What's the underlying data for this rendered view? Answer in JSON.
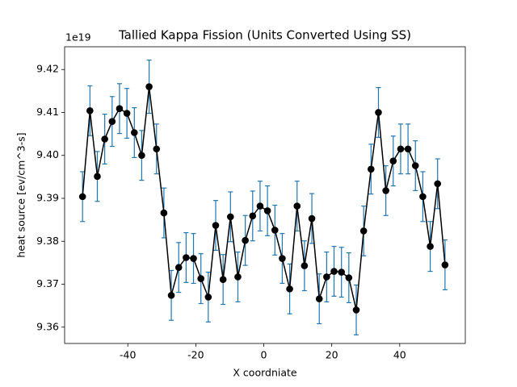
{
  "chart_data": {
    "type": "errorbar",
    "title": "Tallied Kappa Fission (Units Converted Using SS)",
    "xlabel": "X coordniate",
    "ylabel": "heat source [ev/cm^3-s]",
    "y_offset_label": "1e19",
    "x": [
      -53.33,
      -51.15,
      -48.98,
      -46.8,
      -44.62,
      -42.45,
      -40.27,
      -38.09,
      -35.92,
      -33.74,
      -31.56,
      -29.39,
      -27.21,
      -25.03,
      -22.86,
      -20.68,
      -18.5,
      -16.33,
      -14.15,
      -11.97,
      -9.8,
      -7.62,
      -5.44,
      -3.27,
      -1.09,
      1.09,
      3.27,
      5.44,
      7.62,
      9.8,
      11.97,
      14.15,
      16.33,
      18.5,
      20.68,
      22.86,
      25.03,
      27.21,
      29.39,
      31.56,
      33.74,
      35.92,
      38.09,
      40.27,
      42.45,
      44.62,
      46.8,
      48.98,
      51.15,
      53.33
    ],
    "values": [
      9.3904,
      9.4104,
      9.3951,
      9.4038,
      9.4079,
      9.4109,
      9.4098,
      9.4053,
      9.4,
      9.416,
      9.4015,
      9.3866,
      9.3674,
      9.3739,
      9.3762,
      9.376,
      9.3713,
      9.367,
      9.3837,
      9.3711,
      9.3857,
      9.3717,
      9.3802,
      9.3859,
      9.3882,
      9.3871,
      9.3826,
      9.376,
      9.3689,
      9.3882,
      9.3743,
      9.3853,
      9.3666,
      9.3717,
      9.373,
      9.3728,
      9.3715,
      9.364,
      9.3824,
      9.3968,
      9.41,
      9.3918,
      9.3987,
      9.4015,
      9.4015,
      9.3976,
      9.3904,
      9.3788,
      9.3934,
      9.3745
    ],
    "yerr": [
      0.0058,
      0.0058,
      0.0058,
      0.0058,
      0.0058,
      0.0058,
      0.0058,
      0.0058,
      0.0058,
      0.0062,
      0.0058,
      0.0058,
      0.0058,
      0.0058,
      0.0058,
      0.0058,
      0.0058,
      0.0058,
      0.0058,
      0.0058,
      0.0058,
      0.0058,
      0.0058,
      0.0058,
      0.0058,
      0.0058,
      0.0058,
      0.0058,
      0.0058,
      0.0058,
      0.0058,
      0.0058,
      0.0058,
      0.0058,
      0.0058,
      0.0058,
      0.0058,
      0.0058,
      0.0058,
      0.0058,
      0.0058,
      0.0058,
      0.0058,
      0.0058,
      0.0058,
      0.0058,
      0.0058,
      0.0058,
      0.0058,
      0.0058
    ],
    "color": "#000000",
    "ecolor": "#1f77b4",
    "xlim": [
      -58.6,
      59.3
    ],
    "xticks": [
      -40,
      -20,
      0,
      20,
      40
    ],
    "ylim": [
      9.3562,
      9.4253
    ],
    "yticks": [
      9.36,
      9.37,
      9.38,
      9.39,
      {
        "value": 9.4,
        "label": "9.40"
      },
      9.41,
      9.42
    ]
  }
}
